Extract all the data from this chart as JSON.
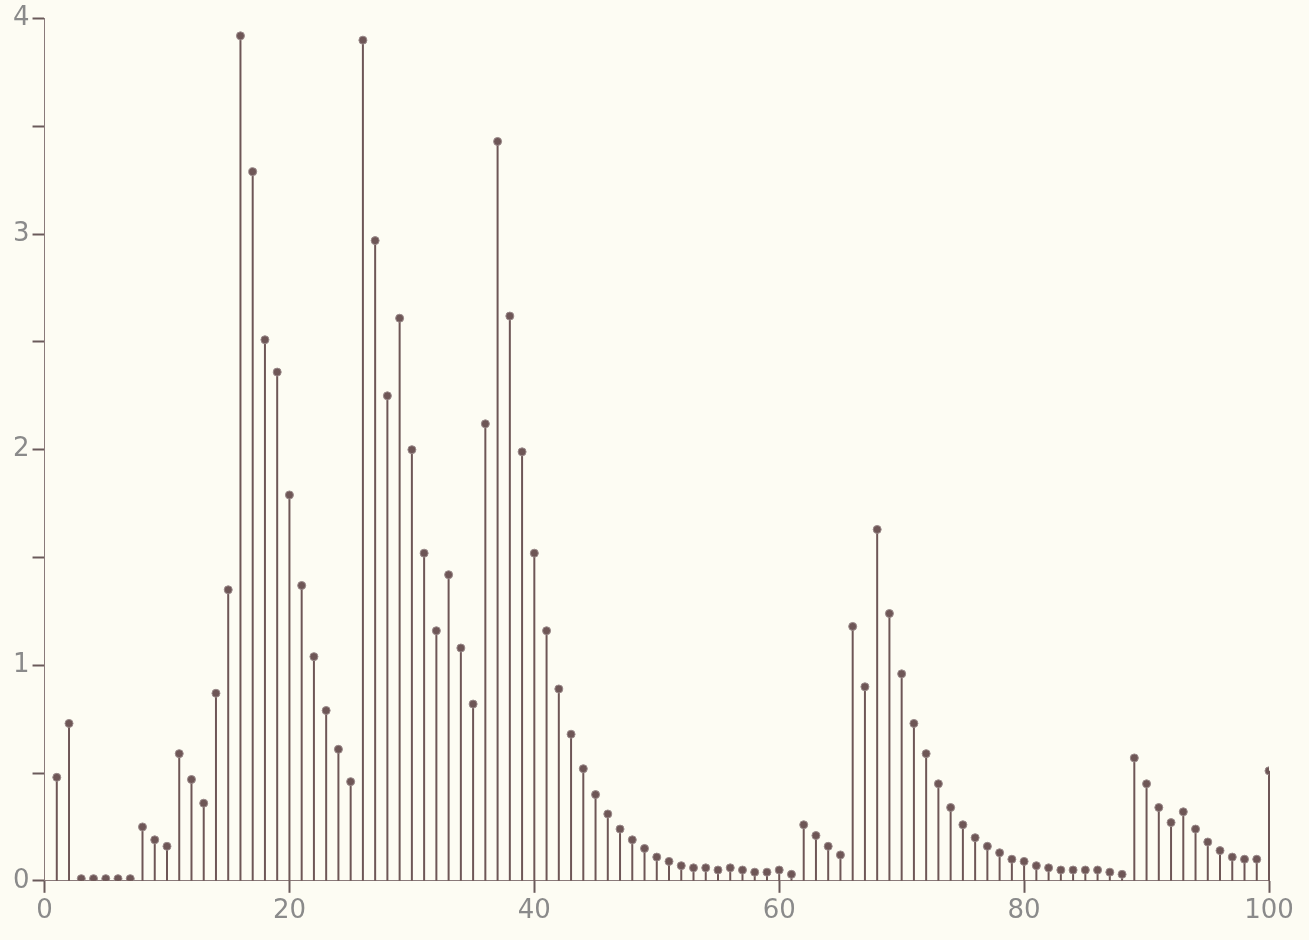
{
  "chart_data": {
    "type": "lollipop",
    "x": [
      1,
      2,
      3,
      4,
      5,
      6,
      7,
      8,
      9,
      10,
      11,
      12,
      13,
      14,
      15,
      16,
      17,
      18,
      19,
      20,
      21,
      22,
      23,
      24,
      25,
      26,
      27,
      28,
      29,
      30,
      31,
      32,
      33,
      34,
      35,
      36,
      37,
      38,
      39,
      40,
      41,
      42,
      43,
      44,
      45,
      46,
      47,
      48,
      49,
      50,
      51,
      52,
      53,
      54,
      55,
      56,
      57,
      58,
      59,
      60,
      61,
      62,
      63,
      64,
      65,
      66,
      67,
      68,
      69,
      70,
      71,
      72,
      73,
      74,
      75,
      76,
      77,
      78,
      79,
      80,
      81,
      82,
      83,
      84,
      85,
      86,
      87,
      88,
      89,
      90,
      91,
      92,
      93,
      94,
      95,
      96,
      97,
      98,
      99,
      100
    ],
    "values": [
      0.48,
      0.73,
      0.01,
      0.01,
      0.01,
      0.01,
      0.01,
      0.25,
      0.19,
      0.16,
      0.59,
      0.47,
      0.36,
      0.87,
      1.35,
      3.92,
      3.29,
      2.51,
      2.36,
      1.79,
      1.37,
      1.04,
      0.79,
      0.61,
      0.46,
      3.9,
      2.97,
      2.25,
      2.61,
      2.0,
      1.52,
      1.16,
      1.42,
      1.08,
      0.82,
      2.12,
      3.43,
      2.62,
      1.99,
      1.52,
      1.16,
      0.89,
      0.68,
      0.52,
      0.4,
      0.31,
      0.24,
      0.19,
      0.15,
      0.11,
      0.09,
      0.07,
      0.06,
      0.06,
      0.05,
      0.06,
      0.05,
      0.04,
      0.04,
      0.05,
      0.03,
      0.26,
      0.21,
      0.16,
      0.12,
      1.18,
      0.9,
      1.63,
      1.24,
      0.96,
      0.73,
      0.59,
      0.45,
      0.34,
      0.26,
      0.2,
      0.16,
      0.13,
      0.1,
      0.09,
      0.07,
      0.06,
      0.05,
      0.05,
      0.05,
      0.05,
      0.04,
      0.03,
      0.57,
      0.45,
      0.34,
      0.27,
      0.32,
      0.24,
      0.18,
      0.14,
      0.11,
      0.1,
      0.1,
      0.51
    ],
    "color": "#6e5656",
    "marker": "circle",
    "xlim": [
      0,
      100
    ],
    "xticks": [
      0,
      20,
      40,
      60,
      80,
      100
    ],
    "ylim": [
      0,
      4
    ],
    "yticks": [
      0,
      {
        "value": 0.5,
        "label": null
      },
      1,
      {
        "value": 1.5,
        "label": null
      },
      2,
      {
        "value": 2.5,
        "label": null
      },
      3,
      {
        "value": 3.5,
        "label": null
      },
      4
    ],
    "grid": false,
    "legend": false
  }
}
